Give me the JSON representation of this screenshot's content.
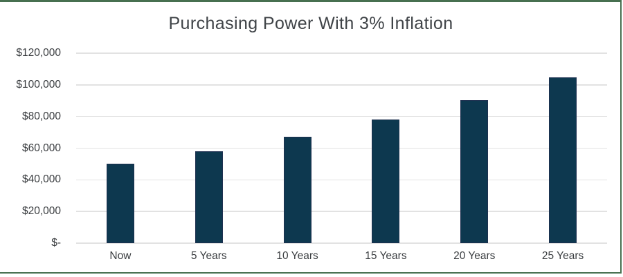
{
  "card": {
    "frame_border_color": "#477050",
    "background_color": "#ffffff"
  },
  "chart_data": {
    "type": "bar",
    "title": "Purchasing Power With 3% Inflation",
    "categories": [
      "Now",
      "5 Years",
      "10 Years",
      "15 Years",
      "20 Years",
      "25 Years"
    ],
    "values": [
      50000,
      57964,
      67196,
      77898,
      90306,
      104689
    ],
    "xlabel": "",
    "ylabel": "",
    "ylim": [
      0,
      120000
    ],
    "ytick_interval": 20000,
    "ytick_labels": [
      "$-",
      "$20,000",
      "$40,000",
      "$60,000",
      "$80,000",
      "$100,000",
      "$120,000"
    ],
    "grid": true,
    "legend": "none",
    "bar_color": "#0d384f",
    "bar_border_color": "#1e3050",
    "gridline_color": "#e2e2e2",
    "text_color": "#3a3d40",
    "title_color": "#3f4347"
  }
}
